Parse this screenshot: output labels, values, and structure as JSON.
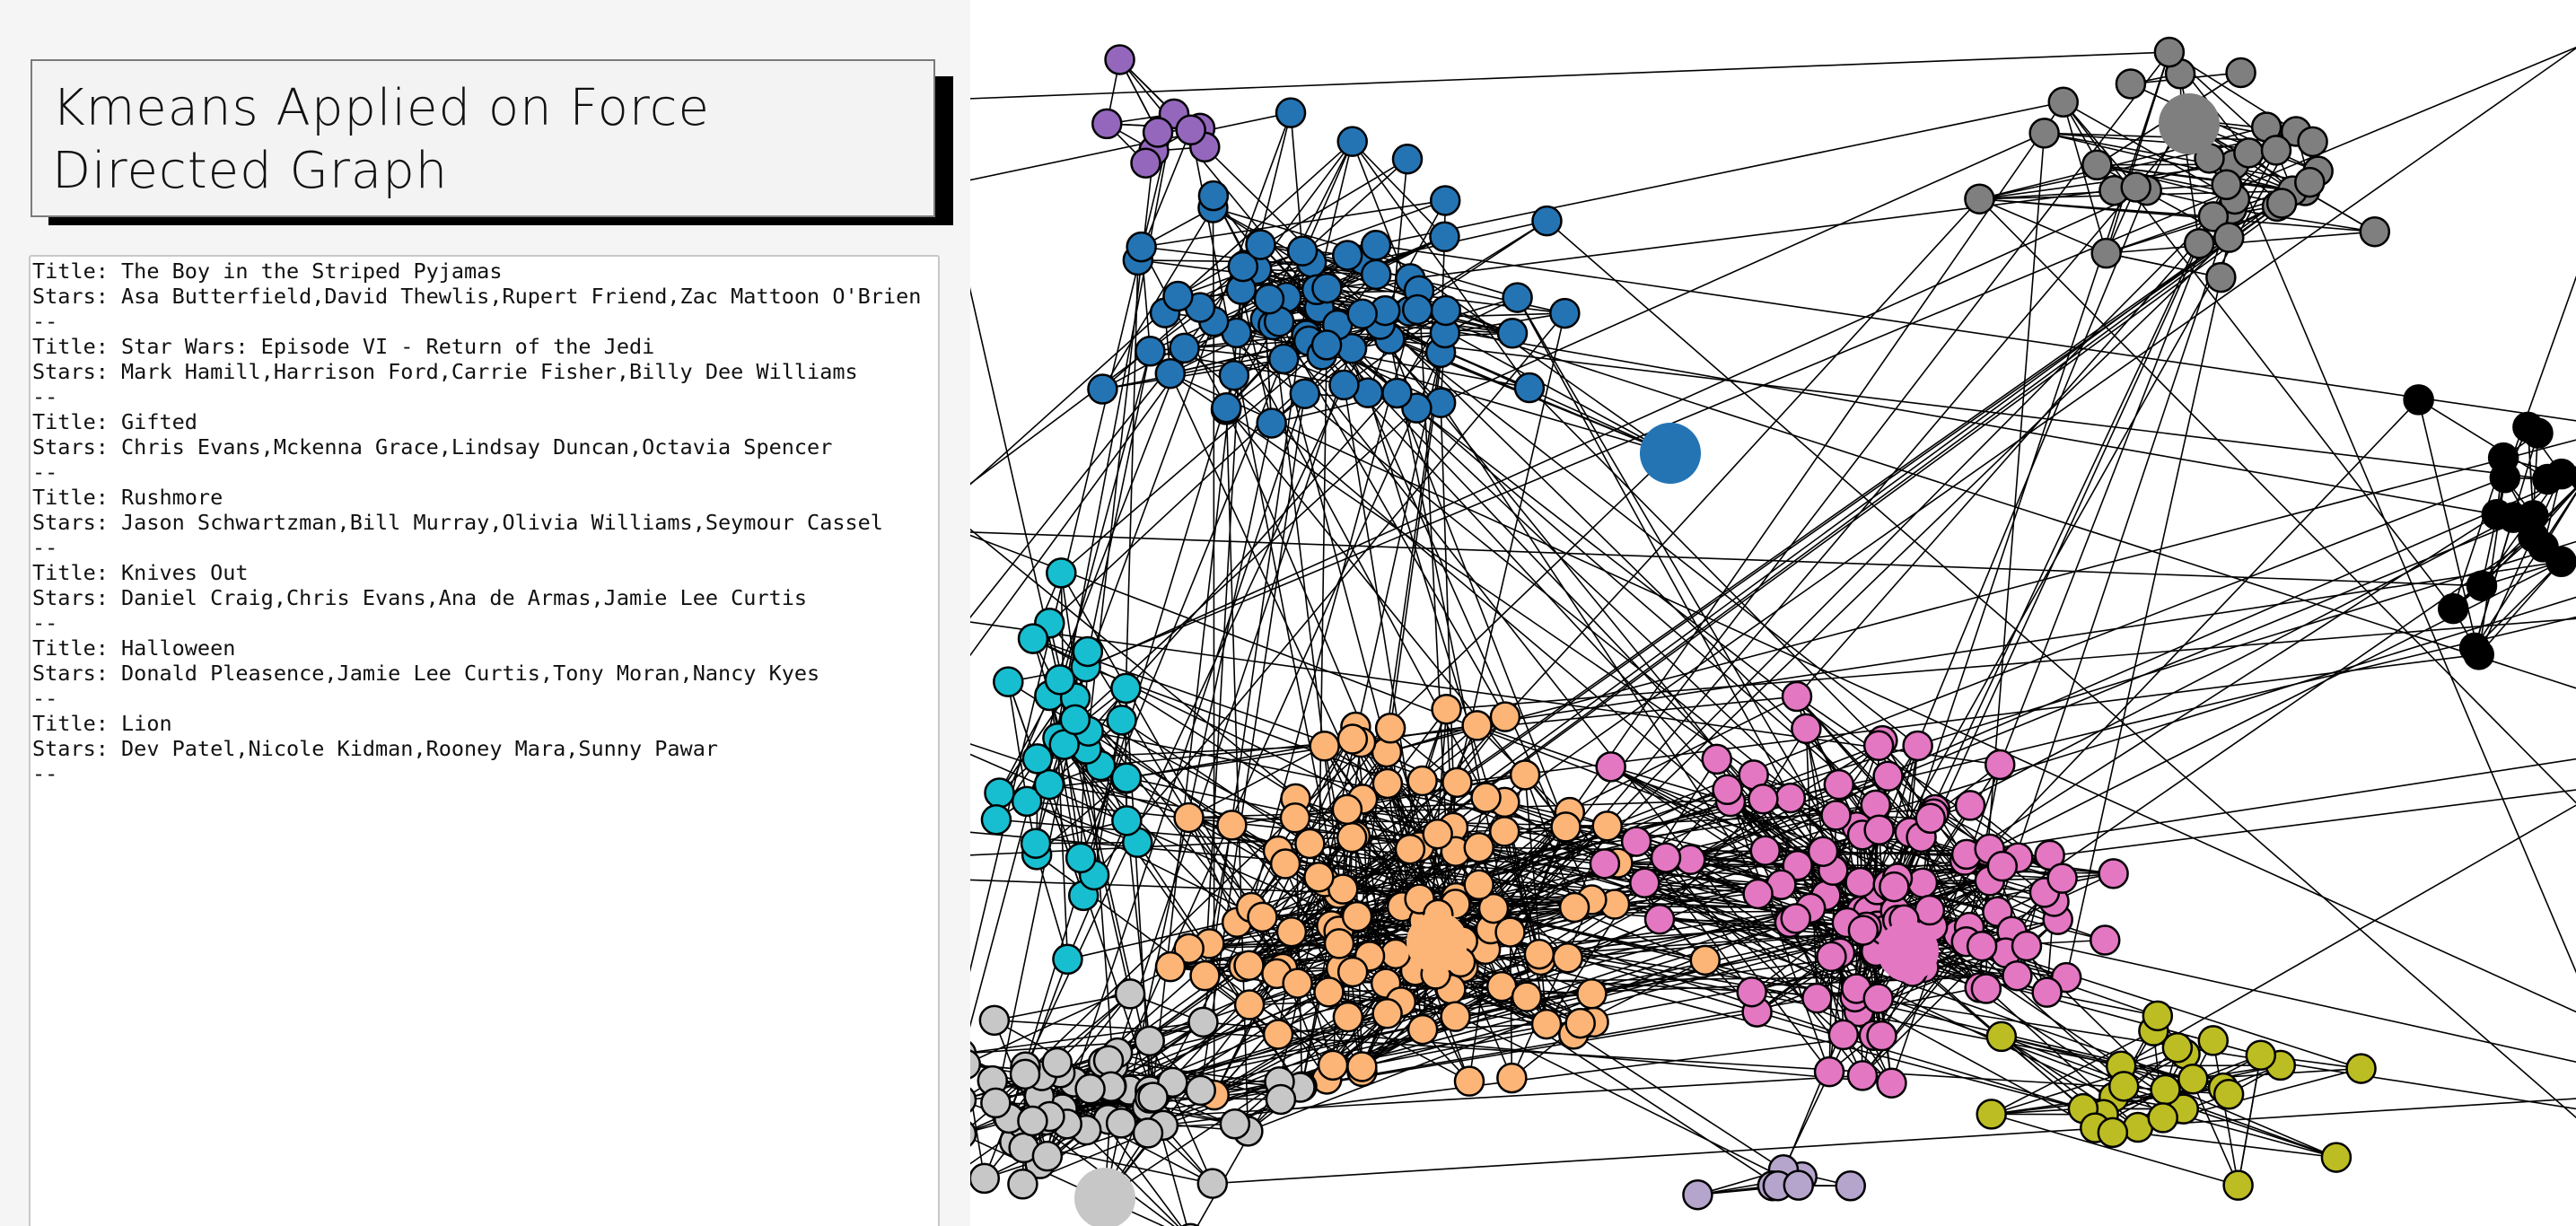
{
  "page": {
    "title": "Kmeans Applied on Force Directed Graph"
  },
  "movies_text": "Title: The Boy in the Striped Pyjamas\nStars: Asa Butterfield,David Thewlis,Rupert Friend,Zac Mattoon O'Brien\n--\nTitle: Star Wars: Episode VI - Return of the Jedi\nStars: Mark Hamill,Harrison Ford,Carrie Fisher,Billy Dee Williams\n--\nTitle: Gifted\nStars: Chris Evans,Mckenna Grace,Lindsay Duncan,Octavia Spencer\n--\nTitle: Rushmore\nStars: Jason Schwartzman,Bill Murray,Olivia Williams,Seymour Cassel\n--\nTitle: Knives Out\nStars: Daniel Craig,Chris Evans,Ana de Armas,Jamie Lee Curtis\n--\nTitle: Halloween\nStars: Donald Pleasence,Jamie Lee Curtis,Tony Moran,Nancy Kyes\n--\nTitle: Lion\nStars: Dev Patel,Nicole Kidman,Rooney Mara,Sunny Pawar\n--",
  "graph": {
    "edge_color": "#000000",
    "node_stroke": "#000000",
    "clusters": [
      {
        "color": "#2474b4"
      },
      {
        "color": "#fcb577"
      },
      {
        "color": "#e377c2"
      },
      {
        "color": "#17becf"
      },
      {
        "color": "#c7c7c7"
      },
      {
        "color": "#7f7f7f"
      },
      {
        "color": "#9467bd"
      },
      {
        "color": "#000000"
      },
      {
        "color": "#bcbd22"
      },
      {
        "color": "#b5a4cc"
      }
    ]
  }
}
